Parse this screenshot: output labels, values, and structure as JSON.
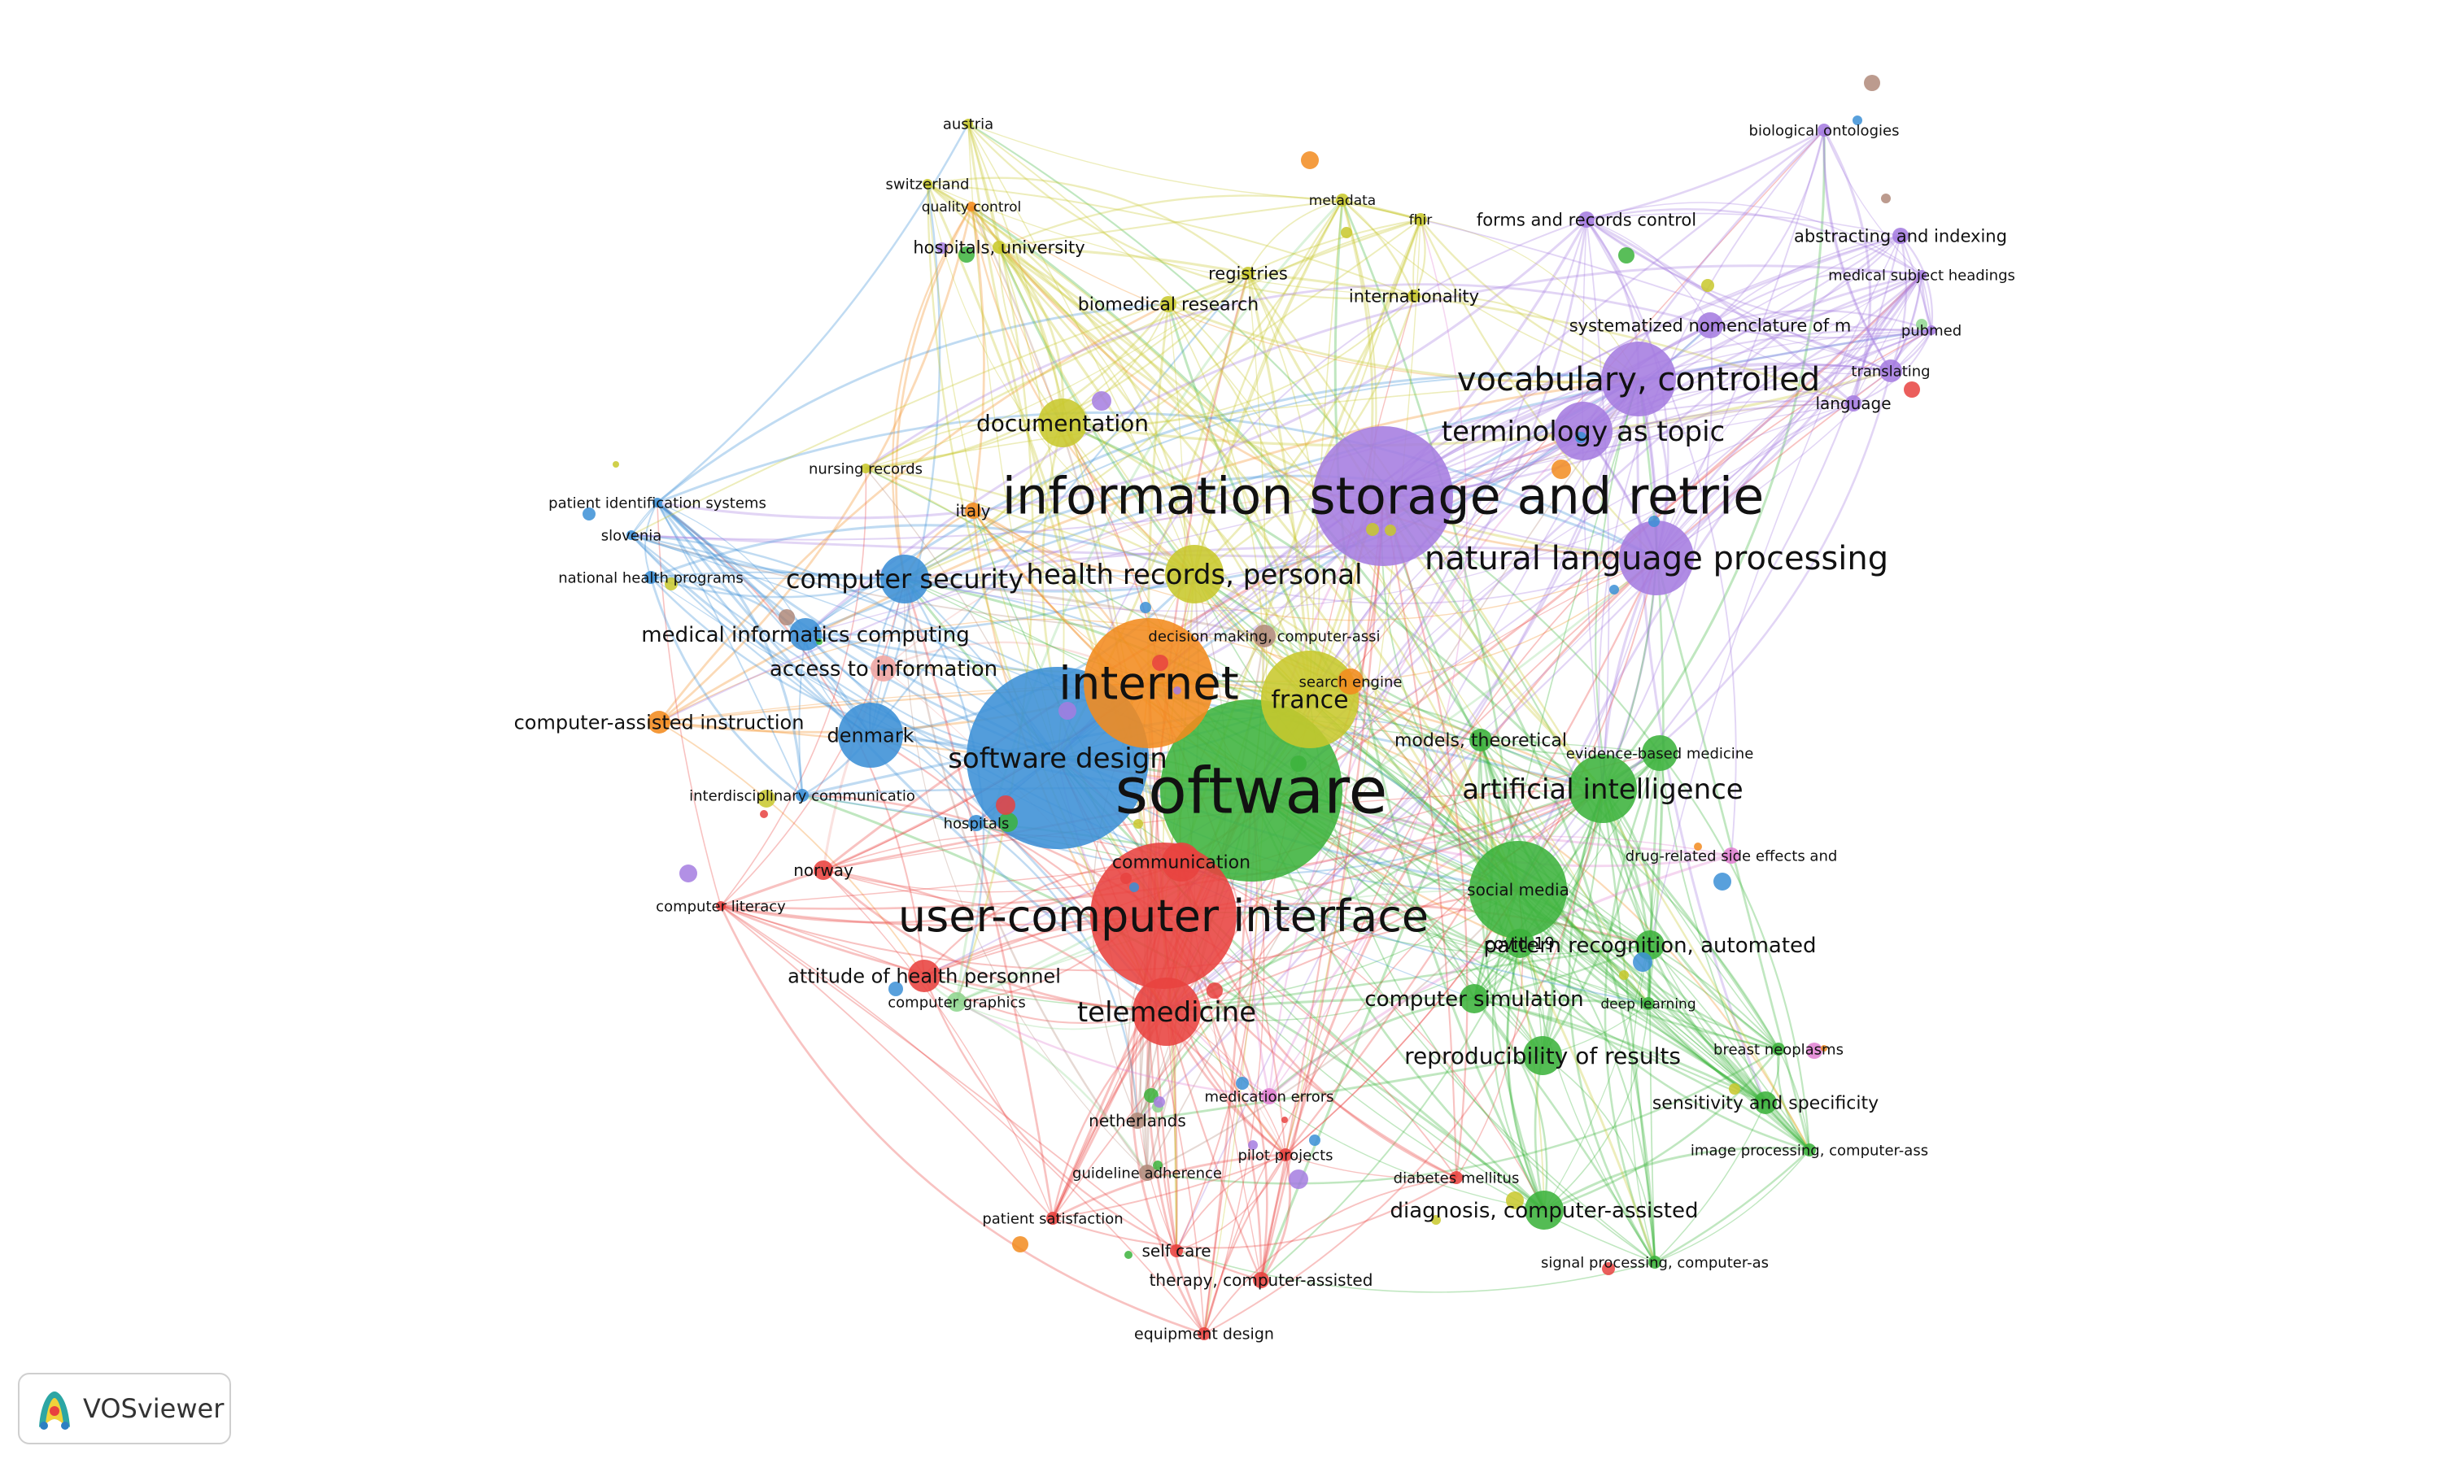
{
  "app": {
    "name": "VOSviewer"
  },
  "colors": {
    "red": "#e8423f",
    "green": "#3cb33c",
    "blue": "#3b8fd6",
    "yellow": "#c8c82c",
    "purple": "#a57ce0",
    "cyan": "#35c3de",
    "orange": "#f28b1e",
    "brown": "#b08a7a",
    "pink": "#e07fd1",
    "lightgreen": "#8fd68f",
    "salmon": "#f0a5a0"
  },
  "nodes": [
    {
      "id": "software",
      "label": "software",
      "cluster": "green",
      "weight": 10
    },
    {
      "id": "ucui",
      "label": "user-computer interface",
      "cluster": "red",
      "weight": 9
    },
    {
      "id": "isr",
      "label": "information storage and retrie",
      "cluster": "purple",
      "weight": 9
    },
    {
      "id": "internet",
      "label": "internet",
      "cluster": "orange",
      "weight": 8
    },
    {
      "id": "sdesign",
      "label": "software design",
      "cluster": "blue",
      "weight": 8
    },
    {
      "id": "france",
      "label": "france",
      "cluster": "yellow",
      "weight": 6
    },
    {
      "id": "nlp",
      "label": "natural language processing",
      "cluster": "purple",
      "weight": 6
    },
    {
      "id": "vocab",
      "label": "vocabulary, controlled",
      "cluster": "purple",
      "weight": 6
    },
    {
      "id": "termtopic",
      "label": "terminology as topic",
      "cluster": "purple",
      "weight": 5
    },
    {
      "id": "ai",
      "label": "artificial intelligence",
      "cluster": "green",
      "weight": 5
    },
    {
      "id": "telemed",
      "label": "telemedicine",
      "cluster": "red",
      "weight": 5
    },
    {
      "id": "hrp",
      "label": "health records, personal",
      "cluster": "yellow",
      "weight": 5
    },
    {
      "id": "compsec",
      "label": "computer security",
      "cluster": "blue",
      "weight": 5
    },
    {
      "id": "documentation",
      "label": "documentation",
      "cluster": "yellow",
      "weight": 4
    },
    {
      "id": "socialmedia",
      "label": "social media",
      "cluster": "green",
      "weight": 5
    },
    {
      "id": "mic",
      "label": "medical informatics computing",
      "cluster": "blue",
      "weight": 4
    },
    {
      "id": "a2i",
      "label": "access to information",
      "cluster": "salmon",
      "weight": 3
    },
    {
      "id": "denmark",
      "label": "denmark",
      "cluster": "blue",
      "weight": 4
    },
    {
      "id": "cai",
      "label": "computer-assisted instruction",
      "cluster": "orange",
      "weight": 3
    },
    {
      "id": "attitude",
      "label": "attitude of health personnel",
      "cluster": "red",
      "weight": 4
    },
    {
      "id": "compsim",
      "label": "computer simulation",
      "cluster": "green",
      "weight": 3
    },
    {
      "id": "repro",
      "label": "reproducibility of results",
      "cluster": "green",
      "weight": 4
    },
    {
      "id": "diagnosis",
      "label": "diagnosis, computer-assisted",
      "cluster": "green",
      "weight": 4
    },
    {
      "id": "patrec",
      "label": "pattern recognition, automated",
      "cluster": "green",
      "weight": 3
    },
    {
      "id": "sens",
      "label": "sensitivity and specificity",
      "cluster": "green",
      "weight": 3
    },
    {
      "id": "models",
      "label": "models, theoretical",
      "cluster": "green",
      "weight": 3
    },
    {
      "id": "covid",
      "label": "covid-19",
      "cluster": "green",
      "weight": 3
    },
    {
      "id": "communication",
      "label": "communication",
      "cluster": "red",
      "weight": 3
    },
    {
      "id": "hospitals",
      "label": "hospitals",
      "cluster": "blue",
      "weight": 2
    },
    {
      "id": "norway",
      "label": "norway",
      "cluster": "red",
      "weight": 2
    },
    {
      "id": "netherlands",
      "label": "netherlands",
      "cluster": "brown",
      "weight": 2
    },
    {
      "id": "decision",
      "label": "decision making, computer-assi",
      "cluster": "brown",
      "weight": 2
    },
    {
      "id": "searchengine",
      "label": "search engine",
      "cluster": "orange",
      "weight": 2
    },
    {
      "id": "evidence",
      "label": "evidence-based medicine",
      "cluster": "green",
      "weight": 2
    },
    {
      "id": "drugrel",
      "label": "drug-related side effects and",
      "cluster": "pink",
      "weight": 2
    },
    {
      "id": "deeplearning",
      "label": "deep learning",
      "cluster": "green",
      "weight": 2
    },
    {
      "id": "breast",
      "label": "breast neoplasms",
      "cluster": "green",
      "weight": 2
    },
    {
      "id": "imageproc",
      "label": "image processing, computer-ass",
      "cluster": "green",
      "weight": 2
    },
    {
      "id": "signalproc",
      "label": "signal processing, computer-as",
      "cluster": "green",
      "weight": 2
    },
    {
      "id": "diabetes",
      "label": "diabetes mellitus",
      "cluster": "red",
      "weight": 2
    },
    {
      "id": "selfcare",
      "label": "self care",
      "cluster": "red",
      "weight": 2
    },
    {
      "id": "therapy",
      "label": "therapy, computer-assisted",
      "cluster": "red",
      "weight": 2
    },
    {
      "id": "equipment",
      "label": "equipment design",
      "cluster": "red",
      "weight": 2
    },
    {
      "id": "patsat",
      "label": "patient satisfaction",
      "cluster": "red",
      "weight": 2
    },
    {
      "id": "guideline",
      "label": "guideline adherence",
      "cluster": "brown",
      "weight": 2
    },
    {
      "id": "pilot",
      "label": "pilot projects",
      "cluster": "red",
      "weight": 2
    },
    {
      "id": "medication",
      "label": "medication errors",
      "cluster": "pink",
      "weight": 2
    },
    {
      "id": "compgraph",
      "label": "computer graphics",
      "cluster": "lightgreen",
      "weight": 2
    },
    {
      "id": "complit",
      "label": "computer literacy",
      "cluster": "red",
      "weight": 2
    },
    {
      "id": "interdisc",
      "label": "interdisciplinary communicatio",
      "cluster": "blue",
      "weight": 2
    },
    {
      "id": "nhp",
      "label": "national health programs",
      "cluster": "blue",
      "weight": 2
    },
    {
      "id": "slovenia",
      "label": "slovenia",
      "cluster": "blue",
      "weight": 2
    },
    {
      "id": "patid",
      "label": "patient identification systems",
      "cluster": "blue",
      "weight": 2
    },
    {
      "id": "nursing",
      "label": "nursing records",
      "cluster": "yellow",
      "weight": 2
    },
    {
      "id": "italy",
      "label": "italy",
      "cluster": "orange",
      "weight": 2
    },
    {
      "id": "hospuniv",
      "label": "hospitals, university",
      "cluster": "yellow",
      "weight": 2
    },
    {
      "id": "quality",
      "label": "quality control",
      "cluster": "orange",
      "weight": 2
    },
    {
      "id": "switzerland",
      "label": "switzerland",
      "cluster": "yellow",
      "weight": 2
    },
    {
      "id": "austria",
      "label": "austria",
      "cluster": "yellow",
      "weight": 2
    },
    {
      "id": "metadata",
      "label": "metadata",
      "cluster": "yellow",
      "weight": 2
    },
    {
      "id": "fhir",
      "label": "fhir",
      "cluster": "yellow",
      "weight": 2
    },
    {
      "id": "registries",
      "label": "registries",
      "cluster": "yellow",
      "weight": 2
    },
    {
      "id": "biomed",
      "label": "biomedical research",
      "cluster": "yellow",
      "weight": 2
    },
    {
      "id": "internationality",
      "label": "internationality",
      "cluster": "yellow",
      "weight": 2
    },
    {
      "id": "forms",
      "label": "forms and records control",
      "cluster": "purple",
      "weight": 2
    },
    {
      "id": "bioont",
      "label": "biological ontologies",
      "cluster": "purple",
      "weight": 2
    },
    {
      "id": "abstracting",
      "label": "abstracting and indexing",
      "cluster": "purple",
      "weight": 2
    },
    {
      "id": "mesh",
      "label": "medical subject headings",
      "cluster": "purple",
      "weight": 2
    },
    {
      "id": "pubmed",
      "label": "pubmed",
      "cluster": "purple",
      "weight": 2
    },
    {
      "id": "snomed",
      "label": "systematized nomenclature of m",
      "cluster": "purple",
      "weight": 3
    },
    {
      "id": "translating",
      "label": "translating",
      "cluster": "purple",
      "weight": 2
    },
    {
      "id": "language",
      "label": "language",
      "cluster": "purple",
      "weight": 2
    }
  ]
}
